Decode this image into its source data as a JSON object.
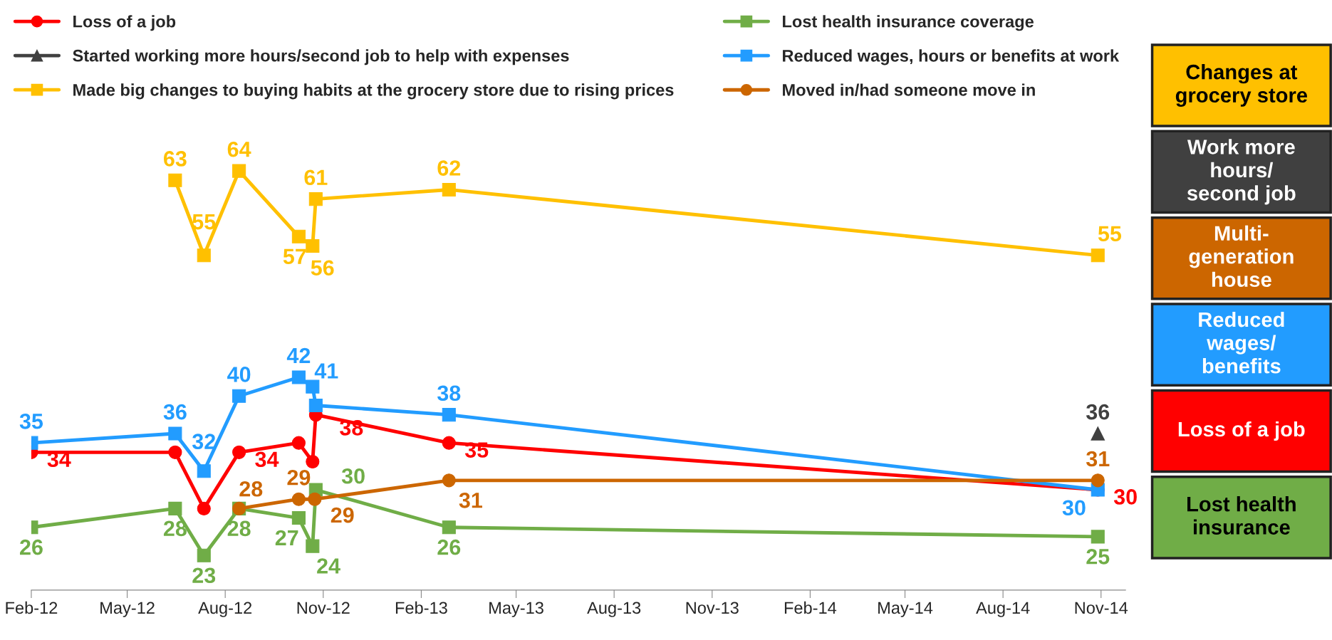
{
  "chart_data": {
    "type": "line",
    "xlim": [
      "2012-02-01",
      "2014-11-24"
    ],
    "xticks": [
      {
        "value": "2012-02-01",
        "label": "Feb-12"
      },
      {
        "value": "2012-05-01",
        "label": "May-12"
      },
      {
        "value": "2012-08-01",
        "label": "Aug-12"
      },
      {
        "value": "2012-11-01",
        "label": "Nov-12"
      },
      {
        "value": "2013-02-01",
        "label": "Feb-13"
      },
      {
        "value": "2013-05-01",
        "label": "May-13"
      },
      {
        "value": "2013-08-01",
        "label": "Aug-13"
      },
      {
        "value": "2013-11-01",
        "label": "Nov-13"
      },
      {
        "value": "2014-02-01",
        "label": "Feb-14"
      },
      {
        "value": "2014-05-01",
        "label": "May-14"
      },
      {
        "value": "2014-08-01",
        "label": "Aug-14"
      },
      {
        "value": "2014-11-01",
        "label": "Nov-14"
      }
    ],
    "tick_labels": "x",
    "grid": false,
    "legend": "top",
    "series": [
      {
        "name": "Loss of a job",
        "color": "#ff0000",
        "marker": "circle",
        "x": [
          "2012-02-01",
          "2012-06-15",
          "2012-07-12",
          "2012-08-14",
          "2012-10-09",
          "2012-10-22",
          "2012-10-25",
          "2013-02-27",
          "2014-10-29"
        ],
        "values": [
          34,
          34,
          28,
          34,
          35,
          33,
          38,
          35,
          30
        ],
        "value_labels": [
          "34",
          null,
          null,
          "34",
          null,
          null,
          "38",
          "35",
          "30"
        ]
      },
      {
        "name": "Started working more hours/second job to help with expenses",
        "color": "#404040",
        "marker": "triangle",
        "x": [
          "2014-10-29"
        ],
        "values": [
          36
        ],
        "value_labels": [
          "36"
        ]
      },
      {
        "name": "Made big changes to buying habits at the grocery store due to rising prices",
        "color": "#ffc000",
        "marker": "square",
        "x": [
          "2012-06-15",
          "2012-07-12",
          "2012-08-14",
          "2012-10-09",
          "2012-10-22",
          "2012-10-25",
          "2013-02-27",
          "2014-10-29"
        ],
        "values": [
          63,
          55,
          64,
          57,
          56,
          61,
          62,
          55
        ],
        "value_labels": [
          "63",
          "55",
          "64",
          "57",
          "56",
          "61",
          "62",
          "55"
        ]
      },
      {
        "name": "Lost health insurance coverage",
        "color": "#70ad47",
        "marker": "square",
        "x": [
          "2012-02-01",
          "2012-06-15",
          "2012-07-12",
          "2012-08-14",
          "2012-10-09",
          "2012-10-22",
          "2012-10-25",
          "2013-02-27",
          "2014-10-29"
        ],
        "values": [
          26,
          28,
          23,
          28,
          27,
          24,
          30,
          26,
          25
        ],
        "value_labels": [
          "26",
          "28",
          "23",
          "28",
          "27",
          "24",
          "30",
          "26",
          "25"
        ]
      },
      {
        "name": "Reduced wages, hours or benefits at work",
        "color": "#229cff",
        "marker": "square",
        "x": [
          "2012-02-01",
          "2012-06-15",
          "2012-07-12",
          "2012-08-14",
          "2012-10-09",
          "2012-10-22",
          "2012-10-25",
          "2013-02-27",
          "2014-10-29"
        ],
        "values": [
          35,
          36,
          32,
          40,
          42,
          41,
          39,
          38,
          30
        ],
        "value_labels": [
          "35",
          "36",
          "32",
          "40",
          "42",
          "41",
          null,
          "38",
          "30"
        ]
      },
      {
        "name": "Moved in/had someone move in",
        "color": "#cc6600",
        "marker": "circle",
        "x": [
          "2012-08-14",
          "2012-10-09",
          "2012-10-24",
          "2013-02-27",
          "2014-10-29"
        ],
        "values": [
          28,
          29,
          29,
          31,
          31
        ],
        "value_labels": [
          "28",
          "29",
          "29",
          "31",
          "31"
        ]
      }
    ],
    "annotations": [
      "Changes at\ngrocery store",
      "Work more\nhours/\nsecond job",
      "Multi-\ngeneration\nhouse",
      "Reduced\nwages/\nbenefits",
      "Loss of a job",
      "Lost health\ninsurance"
    ]
  }
}
